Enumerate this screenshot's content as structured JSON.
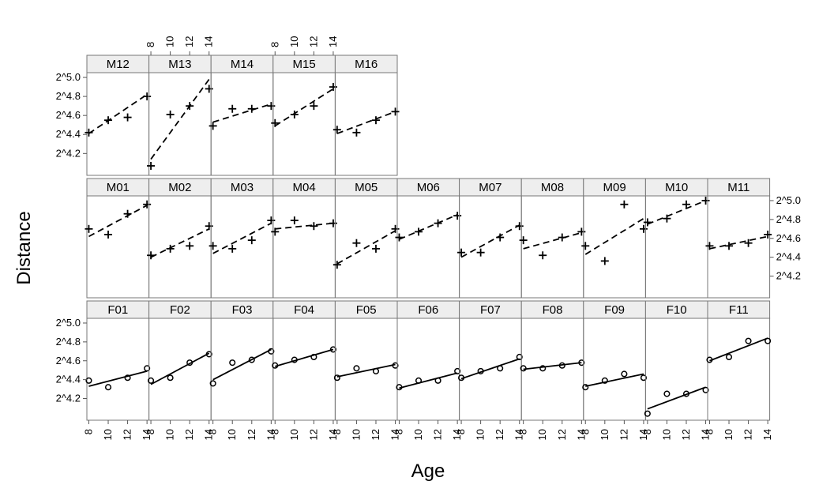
{
  "chart_data": {
    "type": "scatter",
    "layout": "trellis",
    "xlabel": "Age",
    "ylabel": "Distance",
    "x_ticks": [
      8,
      10,
      12,
      14
    ],
    "y_ticks": [
      4.2,
      4.4,
      4.6,
      4.8,
      5.0
    ],
    "y_tick_labels": [
      "2^4.2",
      "2^4.4",
      "2^4.6",
      "2^4.8",
      "2^5.0"
    ],
    "y_scale": "log2",
    "xlim": [
      7.8,
      14.2
    ],
    "ylim": [
      3.97,
      5.05
    ],
    "rows": [
      [
        "M12",
        "M13",
        "M14",
        "M15",
        "M16"
      ],
      [
        "M01",
        "M02",
        "M03",
        "M04",
        "M05",
        "M06",
        "M07",
        "M08",
        "M09",
        "M10",
        "M11"
      ],
      [
        "F01",
        "F02",
        "F03",
        "F04",
        "F05",
        "F06",
        "F07",
        "F08",
        "F09",
        "F10",
        "F11"
      ]
    ],
    "panels": [
      {
        "name": "M12",
        "marker": "+",
        "line": "dashed",
        "values": [
          4.42,
          4.55,
          4.58,
          4.8
        ],
        "fit": [
          4.41,
          4.82
        ]
      },
      {
        "name": "M13",
        "marker": "+",
        "line": "dashed",
        "values": [
          4.07,
          4.61,
          4.7,
          4.88
        ],
        "fit": [
          4.14,
          4.98
        ]
      },
      {
        "name": "M14",
        "marker": "+",
        "line": "dashed",
        "values": [
          4.49,
          4.67,
          4.67,
          4.7
        ],
        "fit": [
          4.53,
          4.72
        ]
      },
      {
        "name": "M15",
        "marker": "+",
        "line": "dashed",
        "values": [
          4.52,
          4.61,
          4.7,
          4.9
        ],
        "fit": [
          4.49,
          4.88
        ]
      },
      {
        "name": "M16",
        "marker": "+",
        "line": "dashed",
        "values": [
          4.45,
          4.42,
          4.55,
          4.64
        ],
        "fit": [
          4.41,
          4.64
        ]
      },
      {
        "name": "M01",
        "marker": "+",
        "line": "dashed",
        "values": [
          4.7,
          4.64,
          4.86,
          4.96
        ],
        "fit": [
          4.62,
          4.95
        ]
      },
      {
        "name": "M02",
        "marker": "+",
        "line": "dashed",
        "values": [
          4.42,
          4.49,
          4.52,
          4.73
        ],
        "fit": [
          4.4,
          4.7
        ]
      },
      {
        "name": "M03",
        "marker": "+",
        "line": "dashed",
        "values": [
          4.52,
          4.49,
          4.58,
          4.79
        ],
        "fit": [
          4.44,
          4.76
        ]
      },
      {
        "name": "M04",
        "marker": "+",
        "line": "dashed",
        "values": [
          4.67,
          4.79,
          4.73,
          4.76
        ],
        "fit": [
          4.7,
          4.76
        ]
      },
      {
        "name": "M05",
        "marker": "+",
        "line": "dashed",
        "values": [
          4.32,
          4.55,
          4.49,
          4.7
        ],
        "fit": [
          4.33,
          4.68
        ]
      },
      {
        "name": "M06",
        "marker": "+",
        "line": "dashed",
        "values": [
          4.61,
          4.67,
          4.76,
          4.84
        ],
        "fit": [
          4.59,
          4.85
        ]
      },
      {
        "name": "M07",
        "marker": "+",
        "line": "dashed",
        "values": [
          4.45,
          4.45,
          4.61,
          4.73
        ],
        "fit": [
          4.4,
          4.74
        ]
      },
      {
        "name": "M08",
        "marker": "+",
        "line": "dashed",
        "values": [
          4.58,
          4.42,
          4.61,
          4.67
        ],
        "fit": [
          4.49,
          4.66
        ]
      },
      {
        "name": "M09",
        "marker": "+",
        "line": "dashed",
        "values": [
          4.52,
          4.36,
          4.96,
          4.7
        ],
        "fit": [
          4.43,
          4.81
        ]
      },
      {
        "name": "M10",
        "marker": "+",
        "line": "dashed",
        "values": [
          4.77,
          4.81,
          4.96,
          5.0
        ],
        "fit": [
          4.75,
          5.0
        ]
      },
      {
        "name": "M11",
        "marker": "+",
        "line": "dashed",
        "values": [
          4.52,
          4.52,
          4.55,
          4.64
        ],
        "fit": [
          4.49,
          4.62
        ]
      },
      {
        "name": "F01",
        "marker": "o",
        "line": "solid",
        "values": [
          4.39,
          4.32,
          4.42,
          4.52
        ],
        "fit": [
          4.33,
          4.49
        ]
      },
      {
        "name": "F02",
        "marker": "o",
        "line": "solid",
        "values": [
          4.39,
          4.42,
          4.58,
          4.67
        ],
        "fit": [
          4.35,
          4.68
        ]
      },
      {
        "name": "F03",
        "marker": "o",
        "line": "solid",
        "values": [
          4.36,
          4.58,
          4.61,
          4.7
        ],
        "fit": [
          4.4,
          4.72
        ]
      },
      {
        "name": "F04",
        "marker": "o",
        "line": "solid",
        "values": [
          4.55,
          4.61,
          4.64,
          4.72
        ],
        "fit": [
          4.54,
          4.72
        ]
      },
      {
        "name": "F05",
        "marker": "o",
        "line": "solid",
        "values": [
          4.42,
          4.52,
          4.49,
          4.55
        ],
        "fit": [
          4.43,
          4.56
        ]
      },
      {
        "name": "F06",
        "marker": "o",
        "line": "solid",
        "values": [
          4.32,
          4.39,
          4.39,
          4.49
        ],
        "fit": [
          4.31,
          4.47
        ]
      },
      {
        "name": "F07",
        "marker": "o",
        "line": "solid",
        "values": [
          4.42,
          4.49,
          4.52,
          4.64
        ],
        "fit": [
          4.41,
          4.62
        ]
      },
      {
        "name": "F08",
        "marker": "o",
        "line": "solid",
        "values": [
          4.52,
          4.52,
          4.55,
          4.58
        ],
        "fit": [
          4.51,
          4.58
        ]
      },
      {
        "name": "F09",
        "marker": "o",
        "line": "solid",
        "values": [
          4.32,
          4.39,
          4.46,
          4.42
        ],
        "fit": [
          4.33,
          4.46
        ]
      },
      {
        "name": "F10",
        "marker": "o",
        "line": "solid",
        "values": [
          4.04,
          4.25,
          4.25,
          4.29
        ],
        "fit": [
          4.09,
          4.32
        ]
      },
      {
        "name": "F11",
        "marker": "o",
        "line": "solid",
        "values": [
          4.61,
          4.64,
          4.81,
          4.81
        ],
        "fit": [
          4.6,
          4.84
        ]
      }
    ]
  }
}
